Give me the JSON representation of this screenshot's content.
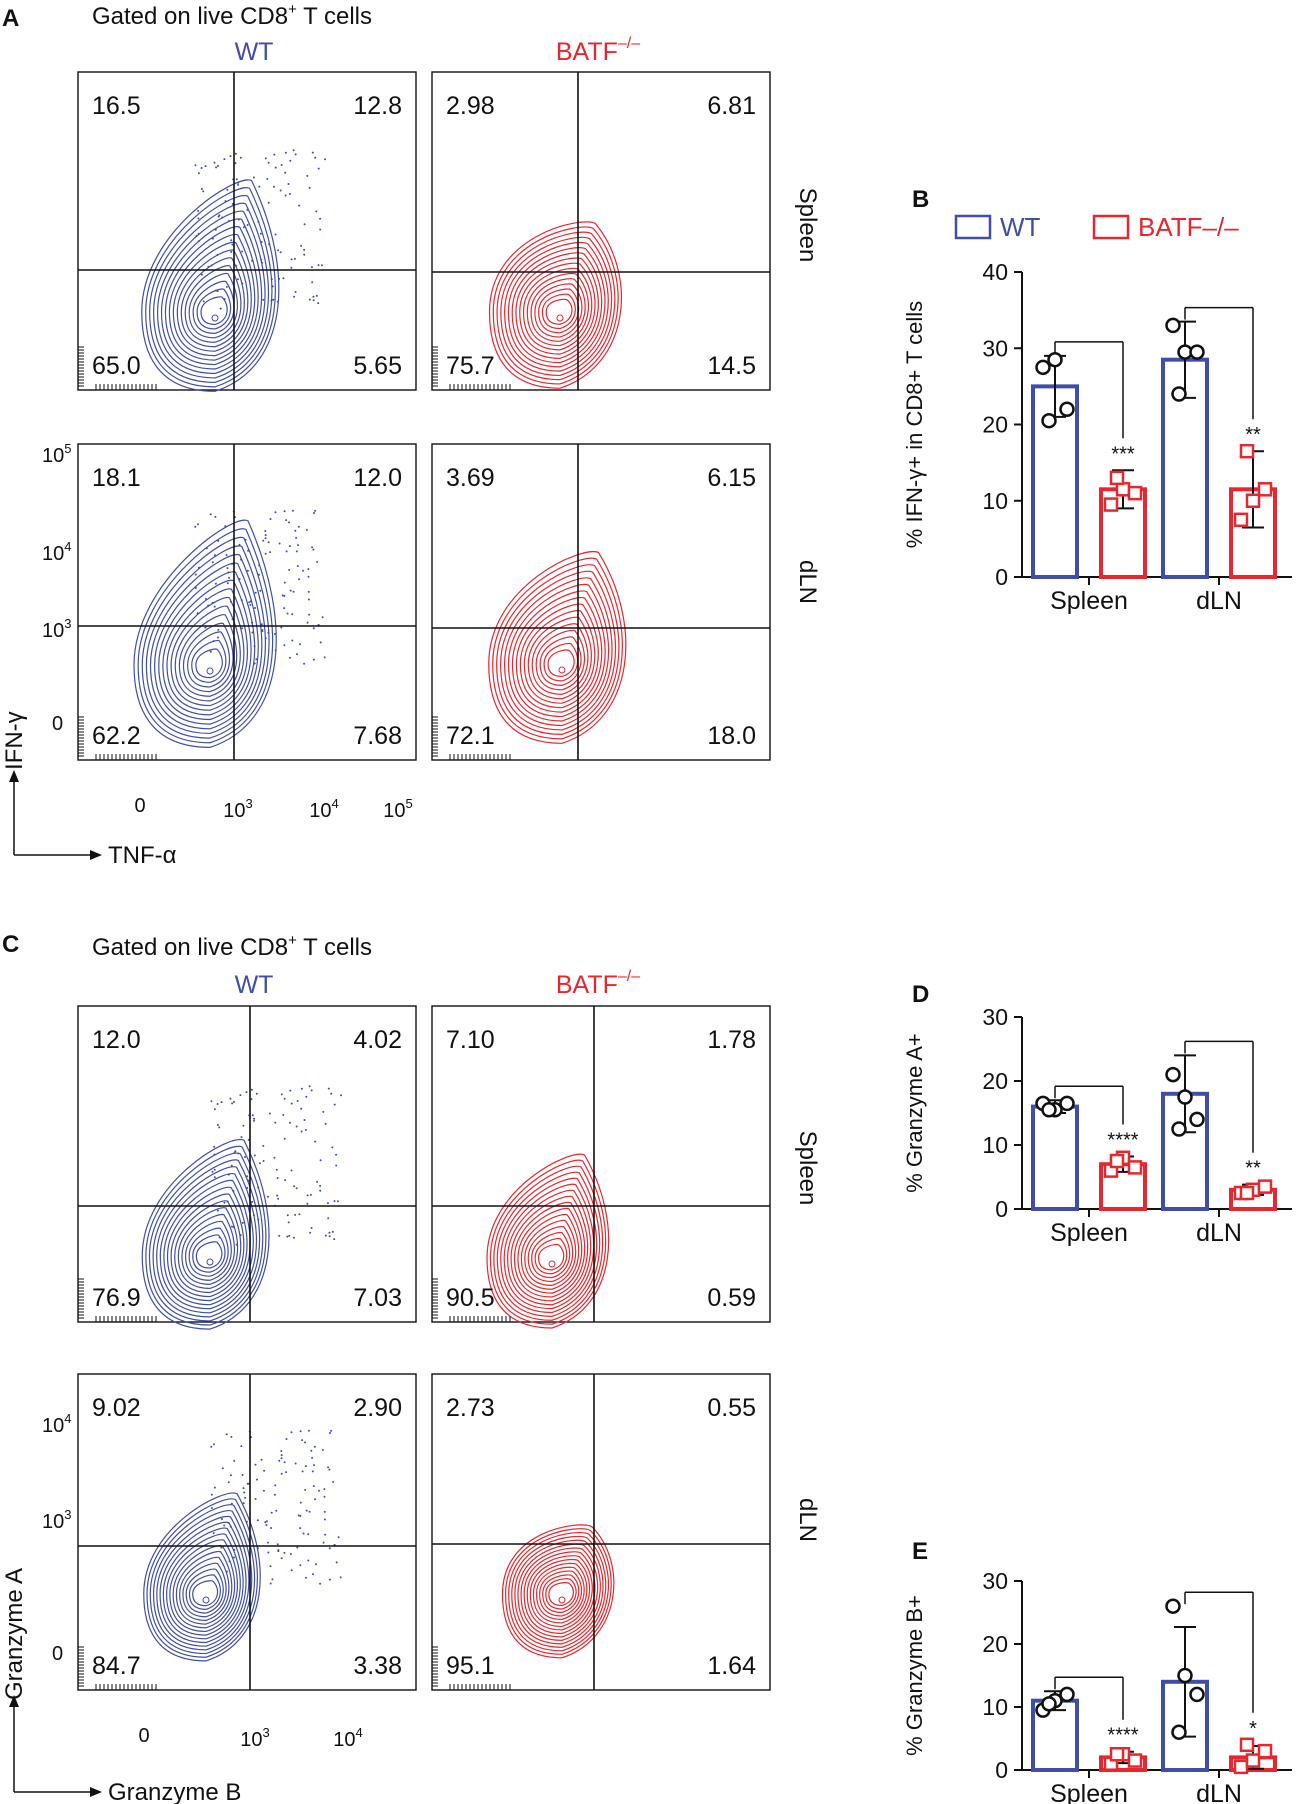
{
  "colors": {
    "wt": "#3f4fa8",
    "batf": "#e8262d",
    "black": "#111111"
  },
  "flow_a": {
    "panel_letter": "A",
    "gate_label": "Gated on live CD8",
    "gate_sup": "+",
    "gate_suffix": " T cells",
    "col_wt": "WT",
    "col_batf": "BATF",
    "col_batf_sup": "–/–",
    "rows": [
      "Spleen",
      "dLN"
    ],
    "y_axis_label": "IFN-γ",
    "x_axis_label": "TNF-α",
    "y_ticks": [
      {
        "base": "10",
        "exp": "5"
      },
      {
        "base": "10",
        "exp": "4"
      },
      {
        "base": "10",
        "exp": "3"
      },
      {
        "base": "0",
        "exp": ""
      }
    ],
    "x_ticks": [
      {
        "base": "0",
        "exp": ""
      },
      {
        "base": "10",
        "exp": "3"
      },
      {
        "base": "10",
        "exp": "4"
      },
      {
        "base": "10",
        "exp": "5"
      }
    ],
    "quadrants": [
      [
        "16.5",
        "12.8",
        "65.0",
        "5.65"
      ],
      [
        "2.98",
        "6.81",
        "75.7",
        "14.5"
      ],
      [
        "18.1",
        "12.0",
        "62.2",
        "7.68"
      ],
      [
        "3.69",
        "6.15",
        "72.1",
        "18.0"
      ]
    ]
  },
  "flow_c": {
    "panel_letter": "C",
    "gate_label": "Gated on live CD8",
    "gate_sup": "+",
    "gate_suffix": " T cells",
    "col_wt": "WT",
    "col_batf": "BATF",
    "col_batf_sup": "–/–",
    "rows": [
      "Spleen",
      "dLN"
    ],
    "y_axis_label": "Granzyme A",
    "x_axis_label": "Granzyme B",
    "y_ticks": [
      {
        "base": "10",
        "exp": "4"
      },
      {
        "base": "10",
        "exp": "3"
      },
      {
        "base": "0",
        "exp": ""
      }
    ],
    "x_ticks": [
      {
        "base": "0",
        "exp": ""
      },
      {
        "base": "10",
        "exp": "3"
      },
      {
        "base": "10",
        "exp": "4"
      }
    ],
    "quadrants": [
      [
        "12.0",
        "4.02",
        "76.9",
        "7.03"
      ],
      [
        "7.10",
        "1.78",
        "90.5",
        "0.59"
      ],
      [
        "9.02",
        "2.90",
        "84.7",
        "3.38"
      ],
      [
        "2.73",
        "0.55",
        "95.1",
        "1.64"
      ]
    ]
  },
  "chart_data": [
    {
      "panel": "B",
      "type": "bar",
      "legend": [
        "WT",
        "BATF–/–"
      ],
      "ylabel": "% IFN-γ+ in CD8+ T cells",
      "categories": [
        "Spleen",
        "dLN"
      ],
      "ylim": [
        0,
        40
      ],
      "yticks": [
        "0",
        "10",
        "20",
        "30",
        "40"
      ],
      "series": [
        {
          "name": "WT",
          "means": [
            25,
            28.5
          ],
          "sd": [
            4,
            5
          ],
          "points": [
            [
              27.5,
              28.5,
              22,
              20.5
            ],
            [
              33,
              29.5,
              29.5,
              24
            ]
          ]
        },
        {
          "name": "BATF–/–",
          "means": [
            11.5,
            11.5
          ],
          "sd": [
            2.5,
            5
          ],
          "points": [
            [
              9.5,
              11.5,
              11,
              13
            ],
            [
              7.5,
              10,
              11.5,
              16.5
            ]
          ]
        }
      ],
      "significance": [
        "***",
        "**"
      ]
    },
    {
      "panel": "D",
      "type": "bar",
      "ylabel": "% Granzyme A+",
      "categories": [
        "Spleen",
        "dLN"
      ],
      "ylim": [
        0,
        30
      ],
      "yticks": [
        "0",
        "10",
        "20",
        "30"
      ],
      "series": [
        {
          "name": "WT",
          "means": [
            16,
            18
          ],
          "sd": [
            1,
            6
          ],
          "points": [
            [
              16.5,
              15.5,
              16.5,
              15.5
            ],
            [
              21,
              17.5,
              14,
              12.5
            ]
          ]
        },
        {
          "name": "BATF–/–",
          "means": [
            7,
            3
          ],
          "sd": [
            1.2,
            0.8
          ],
          "points": [
            [
              6,
              8,
              6.5,
              7.5
            ],
            [
              2.5,
              3,
              3.5,
              2.5
            ]
          ]
        }
      ],
      "significance": [
        "****",
        "**"
      ]
    },
    {
      "panel": "E",
      "type": "bar",
      "ylabel": "% Granzyme B+",
      "categories": [
        "Spleen",
        "dLN"
      ],
      "ylim": [
        0,
        30
      ],
      "yticks": [
        "0",
        "10",
        "20",
        "30"
      ],
      "series": [
        {
          "name": "WT",
          "means": [
            11,
            14
          ],
          "sd": [
            1.5,
            8.7
          ],
          "points": [
            [
              9.5,
              11,
              12,
              10.5
            ],
            [
              26,
              15,
              12,
              6
            ]
          ]
        },
        {
          "name": "BATF–/–",
          "means": [
            2,
            2
          ],
          "sd": [
            0.9,
            1.8
          ],
          "points": [
            [
              1,
              2.5,
              1.5,
              2.5
            ],
            [
              0.5,
              1.5,
              3,
              4
            ]
          ]
        }
      ],
      "significance": [
        "****",
        "*"
      ]
    }
  ]
}
